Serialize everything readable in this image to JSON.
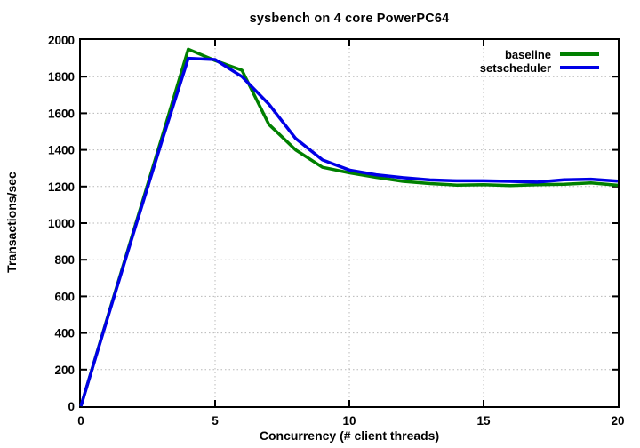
{
  "chart_data": {
    "type": "line",
    "title": "sysbench on 4 core PowerPC64",
    "xlabel": "Concurrency (# client threads)",
    "ylabel": "Transactions/sec",
    "xlim": [
      0,
      20
    ],
    "ylim": [
      0,
      2000
    ],
    "xticks": [
      0,
      5,
      10,
      15,
      20
    ],
    "yticks": [
      0,
      200,
      400,
      600,
      800,
      1000,
      1200,
      1400,
      1600,
      1800,
      2000
    ],
    "grid": true,
    "grid_style": "dotted",
    "legend_position": "top-right-inside",
    "x": [
      0,
      1,
      2,
      3,
      4,
      5,
      6,
      7,
      8,
      9,
      10,
      11,
      12,
      13,
      14,
      15,
      16,
      17,
      18,
      19,
      20
    ],
    "series": [
      {
        "name": "baseline",
        "color": "#008000",
        "values": [
          0,
          490,
          975,
          1460,
          1950,
          1888,
          1835,
          1540,
          1400,
          1305,
          1275,
          1250,
          1228,
          1216,
          1208,
          1210,
          1205,
          1210,
          1212,
          1220,
          1207
        ]
      },
      {
        "name": "setscheduler",
        "color": "#0000e6",
        "values": [
          0,
          485,
          965,
          1440,
          1900,
          1893,
          1800,
          1650,
          1462,
          1345,
          1290,
          1264,
          1248,
          1236,
          1231,
          1231,
          1228,
          1224,
          1237,
          1240,
          1229
        ]
      }
    ]
  },
  "colors": {
    "background": "#ffffff",
    "plot_border": "#000000",
    "grid": "#b8b8b8",
    "text": "#000000"
  }
}
